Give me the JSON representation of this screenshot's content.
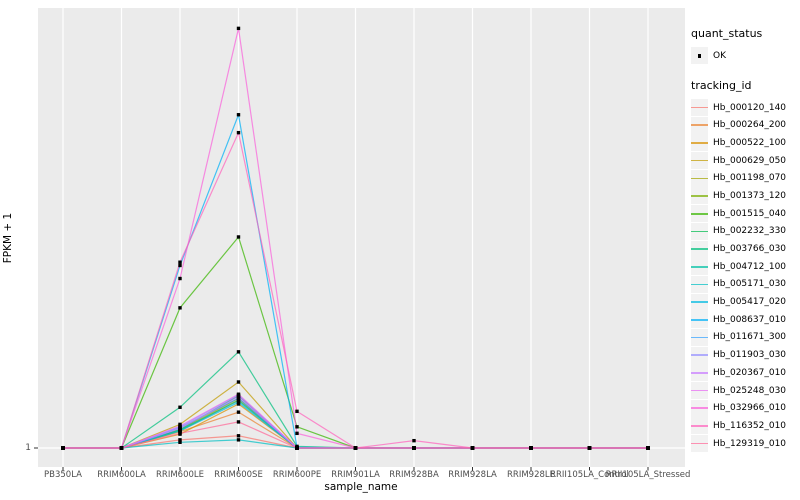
{
  "figure": {
    "background": "#ffffff",
    "panel_background": "#ebebeb",
    "grid_color": "#ffffff",
    "tick_color": "#333333",
    "tick_label_color": "#4d4d4d",
    "point_color": "#000000",
    "line_opacity": 0.72
  },
  "y_axis": {
    "title": "FPKM + 1",
    "tick_labels": [
      "1"
    ],
    "tick_values": [
      1
    ]
  },
  "x_axis": {
    "title": "sample_name"
  },
  "legend": {
    "quant_status": {
      "title": "quant_status",
      "items": [
        {
          "label": "OK",
          "marker": "black-square-point"
        }
      ]
    },
    "tracking_id": {
      "title": "tracking_id"
    }
  },
  "chart_data": {
    "type": "line",
    "title": "",
    "xlabel": "sample_name",
    "ylabel": "FPKM + 1",
    "ylim": [
      1,
      55
    ],
    "y_ticks_shown": [
      1
    ],
    "grid": "on",
    "legend_position": "right",
    "marker": "square",
    "marker_color": "#000000",
    "categories": [
      "PB350LA",
      "RRIM600LA",
      "RRIM600LE",
      "RRIM600SE",
      "RRIM600PE",
      "RRIM901LA",
      "RRIM928BA",
      "RRIM928LA",
      "RRIM928LE",
      "RRII105LA_Control",
      "RRII105LA_Stressed"
    ],
    "series": [
      {
        "name": "Hb_000120_140",
        "color": "#F8766D",
        "values": [
          1,
          1,
          2.0,
          2.5,
          1,
          1,
          1,
          1,
          1,
          1,
          1
        ]
      },
      {
        "name": "Hb_000264_200",
        "color": "#EA8331",
        "values": [
          1,
          1,
          3.0,
          5.4,
          1,
          1,
          1,
          1,
          1,
          1,
          1
        ]
      },
      {
        "name": "Hb_000522_100",
        "color": "#D89000",
        "values": [
          1,
          1,
          2.7,
          6.4,
          1,
          1,
          1,
          1,
          1,
          1,
          1
        ]
      },
      {
        "name": "Hb_000629_050",
        "color": "#C09B00",
        "values": [
          1,
          1,
          3.9,
          9.1,
          1,
          1,
          1,
          1,
          1,
          1,
          1
        ]
      },
      {
        "name": "Hb_001198_070",
        "color": "#A3A500",
        "values": [
          1,
          1,
          3.2,
          7.1,
          1,
          1,
          1,
          1,
          1,
          1,
          1
        ]
      },
      {
        "name": "Hb_001373_120",
        "color": "#7CAE00",
        "values": [
          1,
          1,
          3.1,
          6.9,
          1,
          1,
          1,
          1,
          1,
          1,
          1
        ]
      },
      {
        "name": "Hb_001515_040",
        "color": "#39B600",
        "values": [
          1,
          1,
          18.2,
          26.9,
          3.6,
          1,
          1,
          1,
          1,
          1,
          1
        ]
      },
      {
        "name": "Hb_002232_330",
        "color": "#00BB4E",
        "values": [
          1,
          1,
          3.3,
          7.4,
          1,
          1,
          1,
          1,
          1,
          1,
          1
        ]
      },
      {
        "name": "Hb_003766_030",
        "color": "#00BF7D",
        "values": [
          1,
          1,
          6.0,
          12.8,
          1.2,
          1,
          1,
          1,
          1,
          1,
          1
        ]
      },
      {
        "name": "Hb_004712_100",
        "color": "#00C1A3",
        "values": [
          1,
          1,
          3.2,
          6.8,
          1,
          1,
          1,
          1,
          1,
          1,
          1
        ]
      },
      {
        "name": "Hb_005171_030",
        "color": "#00BFC4",
        "values": [
          1,
          1,
          1.7,
          2.0,
          1,
          1,
          1,
          1,
          1,
          1,
          1
        ]
      },
      {
        "name": "Hb_005417_020",
        "color": "#00BAE0",
        "values": [
          1,
          1,
          3.1,
          6.6,
          1,
          1,
          1,
          1,
          1,
          1,
          1
        ]
      },
      {
        "name": "Hb_008637_010",
        "color": "#00B0F6",
        "values": [
          1,
          1,
          23.4,
          41.9,
          1.1,
          1,
          1,
          1,
          1,
          1,
          1
        ]
      },
      {
        "name": "Hb_011671_300",
        "color": "#35A2FF",
        "values": [
          1,
          1,
          3.5,
          7.1,
          1,
          1,
          1,
          1,
          1,
          1,
          1
        ]
      },
      {
        "name": "Hb_011903_030",
        "color": "#9590FF",
        "values": [
          1,
          1,
          3.6,
          7.5,
          1,
          1,
          1,
          1,
          1,
          1,
          1
        ]
      },
      {
        "name": "Hb_020367_010",
        "color": "#C77CFF",
        "values": [
          1,
          1,
          3.4,
          7.3,
          1,
          1,
          1,
          1,
          1,
          1,
          1
        ]
      },
      {
        "name": "Hb_025248_030",
        "color": "#E76BF3",
        "values": [
          1,
          1,
          3.7,
          7.6,
          1,
          1,
          1,
          1,
          1,
          1,
          1
        ]
      },
      {
        "name": "Hb_032966_010",
        "color": "#FA62DB",
        "values": [
          1,
          1,
          21.8,
          52.5,
          2.8,
          1,
          1,
          1,
          1,
          1,
          1
        ]
      },
      {
        "name": "Hb_116352_010",
        "color": "#FF62BC",
        "values": [
          1,
          1,
          23.8,
          39.7,
          5.5,
          1,
          1.9,
          1,
          1,
          1,
          1
        ]
      },
      {
        "name": "Hb_129319_010",
        "color": "#FF6A98",
        "values": [
          1,
          1,
          2.8,
          4.2,
          1,
          1,
          1,
          1,
          1,
          1,
          1
        ]
      }
    ]
  }
}
